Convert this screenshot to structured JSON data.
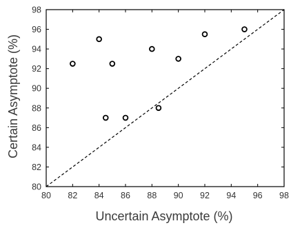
{
  "chart_data": {
    "type": "scatter",
    "xlabel": "Uncertain Asymptote (%)",
    "ylabel": "Certain Asymptote (%)",
    "xlim": [
      80,
      98
    ],
    "ylim": [
      80,
      98
    ],
    "xticks": [
      "80",
      "82",
      "84",
      "86",
      "88",
      "90",
      "92",
      "94",
      "96",
      "98"
    ],
    "yticks": [
      "80",
      "82",
      "84",
      "86",
      "88",
      "90",
      "92",
      "94",
      "96",
      "98"
    ],
    "grid": false,
    "reference_line": {
      "type": "identity",
      "style": "dashed"
    },
    "marker": "open-circle",
    "series": [
      {
        "points": [
          {
            "x": 82.0,
            "y": 92.5
          },
          {
            "x": 84.0,
            "y": 95.0
          },
          {
            "x": 84.5,
            "y": 87.0
          },
          {
            "x": 85.0,
            "y": 92.5
          },
          {
            "x": 86.0,
            "y": 87.0
          },
          {
            "x": 88.0,
            "y": 94.0
          },
          {
            "x": 88.5,
            "y": 88.0
          },
          {
            "x": 90.0,
            "y": 93.0
          },
          {
            "x": 92.0,
            "y": 95.5
          },
          {
            "x": 95.0,
            "y": 96.0
          }
        ]
      }
    ],
    "colors": {
      "marker": "#000000",
      "axis": "#000000",
      "text": "#333333"
    }
  }
}
